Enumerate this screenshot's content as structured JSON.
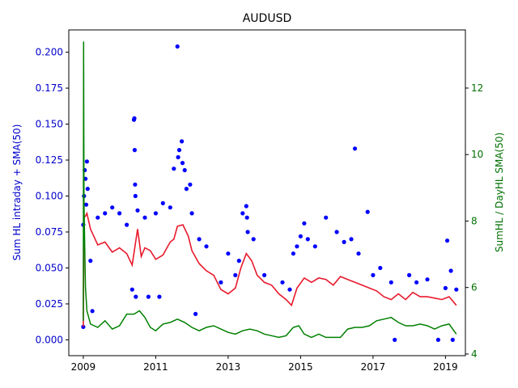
{
  "chart_data": {
    "type": "scatter",
    "title": "AUDUSD",
    "ylabel_left": "Sum HL intraday + SMA(50)",
    "ylabel_right": "SumHL / DayHL SMA(50)",
    "xlim": [
      2008.6,
      2019.55
    ],
    "ylim_left": [
      -0.011,
      0.2155
    ],
    "ylim_right": [
      3.95,
      13.75
    ],
    "x_ticks": [
      {
        "value": 2009,
        "label": "2009"
      },
      {
        "value": 2011,
        "label": "2011"
      },
      {
        "value": 2013,
        "label": "2013"
      },
      {
        "value": 2015,
        "label": "2015"
      },
      {
        "value": 2017,
        "label": "2017"
      },
      {
        "value": 2019,
        "label": "2019"
      }
    ],
    "y_ticks_left": [
      {
        "value": 0.0,
        "label": "0.000"
      },
      {
        "value": 0.025,
        "label": "0.025"
      },
      {
        "value": 0.05,
        "label": "0.050"
      },
      {
        "value": 0.075,
        "label": "0.075"
      },
      {
        "value": 0.1,
        "label": "0.100"
      },
      {
        "value": 0.125,
        "label": "0.125"
      },
      {
        "value": 0.15,
        "label": "0.150"
      },
      {
        "value": 0.175,
        "label": "0.175"
      },
      {
        "value": 0.2,
        "label": "0.200"
      }
    ],
    "y_ticks_right": [
      {
        "value": 4,
        "label": "4"
      },
      {
        "value": 6,
        "label": "6"
      },
      {
        "value": 8,
        "label": "8"
      },
      {
        "value": 10,
        "label": "10"
      },
      {
        "value": 12,
        "label": "12"
      }
    ],
    "colors": {
      "scatter": "#0000ff",
      "sma": "#e8192c",
      "ratio": "#008000",
      "left_axis_text": "#0000cc",
      "right_axis_text": "#007000"
    },
    "series": [
      {
        "type": "scatter",
        "axis": "left",
        "points": [
          [
            2009.0,
            0.009
          ],
          [
            2009.0,
            0.08
          ],
          [
            2009.02,
            0.1
          ],
          [
            2009.04,
            0.118
          ],
          [
            2009.06,
            0.112
          ],
          [
            2009.08,
            0.094
          ],
          [
            2009.1,
            0.124
          ],
          [
            2009.12,
            0.105
          ],
          [
            2009.2,
            0.055
          ],
          [
            2009.25,
            0.02
          ],
          [
            2009.4,
            0.085
          ],
          [
            2009.6,
            0.088
          ],
          [
            2009.8,
            0.092
          ],
          [
            2010.0,
            0.088
          ],
          [
            2010.2,
            0.08
          ],
          [
            2010.35,
            0.035
          ],
          [
            2010.4,
            0.153
          ],
          [
            2010.41,
            0.154
          ],
          [
            2010.42,
            0.132
          ],
          [
            2010.43,
            0.108
          ],
          [
            2010.44,
            0.1
          ],
          [
            2010.45,
            0.03
          ],
          [
            2010.5,
            0.09
          ],
          [
            2010.7,
            0.085
          ],
          [
            2010.8,
            0.03
          ],
          [
            2011.0,
            0.088
          ],
          [
            2011.1,
            0.03
          ],
          [
            2011.2,
            0.095
          ],
          [
            2011.4,
            0.092
          ],
          [
            2011.5,
            0.119
          ],
          [
            2011.6,
            0.204
          ],
          [
            2011.62,
            0.127
          ],
          [
            2011.65,
            0.132
          ],
          [
            2011.72,
            0.138
          ],
          [
            2011.74,
            0.123
          ],
          [
            2011.8,
            0.118
          ],
          [
            2011.85,
            0.105
          ],
          [
            2011.95,
            0.108
          ],
          [
            2012.0,
            0.088
          ],
          [
            2012.1,
            0.018
          ],
          [
            2012.2,
            0.07
          ],
          [
            2012.4,
            0.065
          ],
          [
            2012.8,
            0.04
          ],
          [
            2013.0,
            0.06
          ],
          [
            2013.2,
            0.045
          ],
          [
            2013.3,
            0.055
          ],
          [
            2013.4,
            0.088
          ],
          [
            2013.5,
            0.093
          ],
          [
            2013.52,
            0.085
          ],
          [
            2013.54,
            0.075
          ],
          [
            2013.7,
            0.07
          ],
          [
            2014.0,
            0.045
          ],
          [
            2014.5,
            0.04
          ],
          [
            2014.7,
            0.035
          ],
          [
            2014.8,
            0.06
          ],
          [
            2014.9,
            0.065
          ],
          [
            2015.0,
            0.072
          ],
          [
            2015.1,
            0.081
          ],
          [
            2015.2,
            0.07
          ],
          [
            2015.4,
            0.065
          ],
          [
            2015.7,
            0.085
          ],
          [
            2016.0,
            0.075
          ],
          [
            2016.2,
            0.068
          ],
          [
            2016.4,
            0.07
          ],
          [
            2016.5,
            0.133
          ],
          [
            2016.6,
            0.06
          ],
          [
            2016.85,
            0.089
          ],
          [
            2017.0,
            0.045
          ],
          [
            2017.2,
            0.05
          ],
          [
            2017.5,
            0.04
          ],
          [
            2017.6,
            0.0
          ],
          [
            2018.0,
            0.045
          ],
          [
            2018.2,
            0.04
          ],
          [
            2018.5,
            0.042
          ],
          [
            2018.8,
            0.0
          ],
          [
            2019.0,
            0.036
          ],
          [
            2019.05,
            0.069
          ],
          [
            2019.15,
            0.048
          ],
          [
            2019.2,
            0.0
          ],
          [
            2019.3,
            0.035
          ]
        ]
      },
      {
        "type": "line",
        "axis": "left",
        "x": [
          2009.0,
          2009.02,
          2009.06,
          2009.1,
          2009.2,
          2009.4,
          2009.6,
          2009.8,
          2010.0,
          2010.2,
          2010.35,
          2010.5,
          2010.6,
          2010.7,
          2010.85,
          2011.0,
          2011.2,
          2011.4,
          2011.5,
          2011.6,
          2011.75,
          2011.9,
          2012.0,
          2012.2,
          2012.4,
          2012.6,
          2012.8,
          2013.0,
          2013.2,
          2013.35,
          2013.5,
          2013.65,
          2013.8,
          2014.0,
          2014.2,
          2014.4,
          2014.6,
          2014.75,
          2014.9,
          2015.1,
          2015.3,
          2015.5,
          2015.7,
          2015.9,
          2016.1,
          2016.3,
          2016.5,
          2016.7,
          2016.9,
          2017.1,
          2017.3,
          2017.5,
          2017.7,
          2017.9,
          2018.1,
          2018.3,
          2018.5,
          2018.7,
          2018.9,
          2019.1,
          2019.3
        ],
        "values": [
          0.009,
          0.085,
          0.086,
          0.088,
          0.077,
          0.066,
          0.068,
          0.061,
          0.064,
          0.06,
          0.052,
          0.077,
          0.058,
          0.064,
          0.062,
          0.056,
          0.059,
          0.068,
          0.07,
          0.079,
          0.08,
          0.072,
          0.062,
          0.053,
          0.048,
          0.045,
          0.035,
          0.032,
          0.036,
          0.05,
          0.06,
          0.055,
          0.045,
          0.04,
          0.038,
          0.032,
          0.028,
          0.024,
          0.036,
          0.043,
          0.04,
          0.043,
          0.042,
          0.038,
          0.044,
          0.042,
          0.04,
          0.038,
          0.036,
          0.034,
          0.03,
          0.028,
          0.032,
          0.028,
          0.033,
          0.03,
          0.03,
          0.029,
          0.028,
          0.03,
          0.024
        ]
      },
      {
        "type": "line",
        "axis": "right",
        "x": [
          2009.0,
          2009.01,
          2009.02,
          2009.04,
          2009.06,
          2009.1,
          2009.2,
          2009.4,
          2009.6,
          2009.8,
          2010.0,
          2010.2,
          2010.4,
          2010.55,
          2010.7,
          2010.85,
          2011.0,
          2011.2,
          2011.4,
          2011.6,
          2011.8,
          2012.0,
          2012.2,
          2012.4,
          2012.6,
          2012.8,
          2013.0,
          2013.2,
          2013.4,
          2013.6,
          2013.8,
          2014.0,
          2014.2,
          2014.4,
          2014.6,
          2014.8,
          2014.95,
          2015.1,
          2015.3,
          2015.5,
          2015.7,
          2015.9,
          2016.1,
          2016.3,
          2016.5,
          2016.7,
          2016.9,
          2017.1,
          2017.3,
          2017.5,
          2017.7,
          2017.9,
          2018.1,
          2018.3,
          2018.5,
          2018.7,
          2018.9,
          2019.1,
          2019.3
        ],
        "values": [
          5.0,
          13.4,
          8.5,
          7.2,
          6.0,
          5.3,
          4.9,
          4.8,
          5.0,
          4.75,
          4.85,
          5.2,
          5.2,
          5.3,
          5.1,
          4.8,
          4.7,
          4.9,
          4.95,
          5.05,
          4.95,
          4.8,
          4.7,
          4.8,
          4.85,
          4.75,
          4.65,
          4.6,
          4.7,
          4.75,
          4.7,
          4.6,
          4.55,
          4.5,
          4.55,
          4.8,
          4.85,
          4.6,
          4.5,
          4.6,
          4.5,
          4.5,
          4.5,
          4.75,
          4.8,
          4.8,
          4.85,
          5.0,
          5.05,
          5.1,
          4.95,
          4.85,
          4.85,
          4.9,
          4.85,
          4.75,
          4.85,
          4.9,
          4.6
        ]
      }
    ]
  }
}
